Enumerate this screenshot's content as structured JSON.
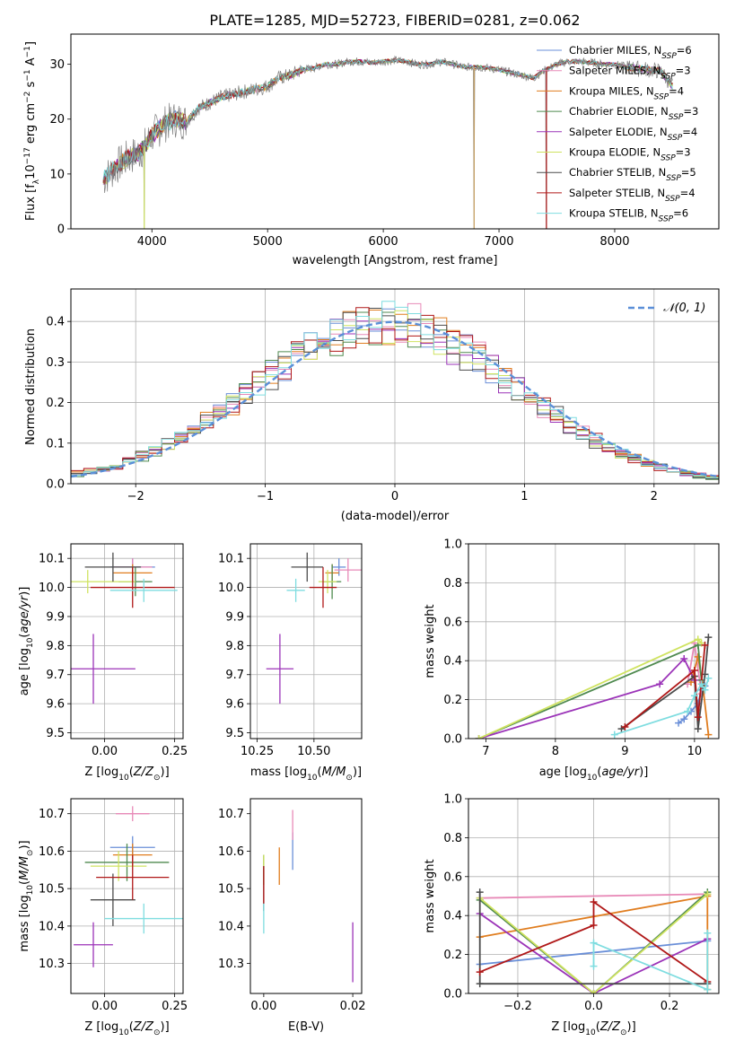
{
  "title": "PLATE=1285, MJD=52723, FIBERID=0281, z=0.062",
  "colors": {
    "Chabrier MILES": "#6a8fd8",
    "Salpeter MILES": "#e88ab8",
    "Kroupa MILES": "#e07d1f",
    "Chabrier ELODIE": "#4f8a4f",
    "Salpeter ELODIE": "#9b33b8",
    "Kroupa ELODIE": "#cfe360",
    "Chabrier STELIB": "#4b4b4b",
    "Salpeter STELIB": "#b01818",
    "Kroupa STELIB": "#7fdde0",
    "data": "#7f7f7f",
    "normal": "#5b8fd8"
  },
  "legend_spectrum": [
    {
      "name": "Chabrier MILES",
      "label": "Chabrier MILES, N",
      "sub": "SSP",
      "n": "=6"
    },
    {
      "name": "Salpeter MILES",
      "label": "Salpeter MILES, N",
      "sub": "SSP",
      "n": "=3"
    },
    {
      "name": "Kroupa MILES",
      "label": "Kroupa MILES, N",
      "sub": "SSP",
      "n": "=4"
    },
    {
      "name": "Chabrier ELODIE",
      "label": "Chabrier ELODIE, N",
      "sub": "SSP",
      "n": "=3"
    },
    {
      "name": "Salpeter ELODIE",
      "label": "Salpeter ELODIE, N",
      "sub": "SSP",
      "n": "=4"
    },
    {
      "name": "Kroupa ELODIE",
      "label": "Kroupa ELODIE, N",
      "sub": "SSP",
      "n": "=3"
    },
    {
      "name": "Chabrier STELIB",
      "label": "Chabrier STELIB, N",
      "sub": "SSP",
      "n": "=5"
    },
    {
      "name": "Salpeter STELIB",
      "label": "Salpeter STELIB, N",
      "sub": "SSP",
      "n": "=4"
    },
    {
      "name": "Kroupa STELIB",
      "label": "Kroupa STELIB, N",
      "sub": "SSP",
      "n": "=6"
    }
  ],
  "legend_residual": "𝒩(0, 1)",
  "chart_data": [
    {
      "id": "spectrum",
      "type": "line",
      "xlabel": "wavelength [Angstrom, rest frame]",
      "ylabel": "Flux [f_λ10^-17 erg cm^-2 s^-1 A^-1]",
      "xlim": [
        3300,
        8900
      ],
      "ylim": [
        0,
        35.5
      ],
      "xticks": [
        4000,
        5000,
        6000,
        7000,
        8000
      ],
      "yticks": [
        0,
        10,
        20,
        30
      ],
      "grid": false,
      "legend": "top-right",
      "continuum": [
        [
          3580,
          9
        ],
        [
          3700,
          11.5
        ],
        [
          3800,
          13
        ],
        [
          3900,
          14
        ],
        [
          4000,
          17
        ],
        [
          4100,
          19
        ],
        [
          4200,
          20
        ],
        [
          4300,
          19.5
        ],
        [
          4400,
          22
        ],
        [
          4500,
          23
        ],
        [
          4600,
          24
        ],
        [
          4700,
          24.5
        ],
        [
          4800,
          25
        ],
        [
          4900,
          25.5
        ],
        [
          5000,
          26
        ],
        [
          5100,
          27.5
        ],
        [
          5200,
          28
        ],
        [
          5300,
          29
        ],
        [
          5400,
          29.3
        ],
        [
          5500,
          30
        ],
        [
          5600,
          30
        ],
        [
          5700,
          30.5
        ],
        [
          5800,
          30.5
        ],
        [
          5900,
          30.3
        ],
        [
          6000,
          30.5
        ],
        [
          6100,
          30.7
        ],
        [
          6200,
          30.5
        ],
        [
          6300,
          30
        ],
        [
          6400,
          30
        ],
        [
          6500,
          30.5
        ],
        [
          6600,
          30
        ],
        [
          6700,
          29.5
        ],
        [
          6800,
          29.5
        ],
        [
          6900,
          29.3
        ],
        [
          7000,
          29
        ],
        [
          7100,
          28.5
        ],
        [
          7200,
          28
        ],
        [
          7300,
          27.5
        ],
        [
          7400,
          29
        ],
        [
          7500,
          30
        ],
        [
          7600,
          30.5
        ],
        [
          7700,
          30.5
        ],
        [
          7800,
          30.3
        ],
        [
          7900,
          30
        ],
        [
          8000,
          30
        ],
        [
          8100,
          29.5
        ],
        [
          8200,
          29.2
        ],
        [
          8300,
          29
        ],
        [
          8400,
          28.7
        ],
        [
          8500,
          26
        ]
      ],
      "data_dips": [
        [
          3934,
          0
        ],
        [
          6785,
          0
        ],
        [
          7410,
          0
        ]
      ]
    },
    {
      "id": "residuals",
      "type": "histogram",
      "xlabel": "(data-model)/error",
      "ylabel": "Normed distribution",
      "xlim": [
        -2.5,
        2.5
      ],
      "ylim": [
        0,
        0.48
      ],
      "xticks": [
        -2,
        -1,
        0,
        1,
        2
      ],
      "yticks": [
        0.0,
        0.1,
        0.2,
        0.3,
        0.4
      ],
      "grid": true,
      "legend": "top-right",
      "bin_width": 0.1,
      "gaussian": {
        "mean": 0,
        "sigma": 1
      }
    },
    {
      "id": "age-vs-Z",
      "type": "errorbar",
      "xlabel": "Z [log10(Z/Z⊙)]",
      "ylabel": "age [log10(age/yr)]",
      "xlim": [
        -0.12,
        0.28
      ],
      "ylim": [
        9.48,
        10.15
      ],
      "xticks": [
        0.0,
        0.25
      ],
      "yticks": [
        9.5,
        9.6,
        9.7,
        9.8,
        9.9,
        10.0,
        10.1
      ],
      "grid": true,
      "points": [
        {
          "series": "Chabrier MILES",
          "x": 0.1,
          "xerr": 0.08,
          "y": 10.07,
          "yerr": 0.03
        },
        {
          "series": "Salpeter MILES",
          "x": 0.1,
          "xerr": 0.07,
          "y": 10.07,
          "yerr": 0.03
        },
        {
          "series": "Kroupa MILES",
          "x": 0.1,
          "xerr": 0.07,
          "y": 10.05,
          "yerr": 0.03
        },
        {
          "series": "Chabrier ELODIE",
          "x": 0.11,
          "xerr": 0.06,
          "y": 10.02,
          "yerr": 0.05
        },
        {
          "series": "Salpeter ELODIE",
          "x": -0.04,
          "xerr": 0.15,
          "y": 9.72,
          "yerr": 0.12
        },
        {
          "series": "Kroupa ELODIE",
          "x": -0.06,
          "xerr": 0.17,
          "y": 10.02,
          "yerr": 0.04
        },
        {
          "series": "Chabrier STELIB",
          "x": 0.03,
          "xerr": 0.1,
          "y": 10.07,
          "yerr": 0.05
        },
        {
          "series": "Salpeter STELIB",
          "x": 0.1,
          "xerr": 0.15,
          "y": 10.0,
          "yerr": 0.07
        },
        {
          "series": "Kroupa STELIB",
          "x": 0.14,
          "xerr": 0.12,
          "y": 9.99,
          "yerr": 0.04
        }
      ]
    },
    {
      "id": "age-vs-mass",
      "type": "errorbar",
      "xlabel": "mass [log10(M/M⊙)]",
      "xlim": [
        10.22,
        10.71
      ],
      "ylim": [
        9.48,
        10.15
      ],
      "xticks": [
        10.25,
        10.5
      ],
      "yticks": [
        9.5,
        9.6,
        9.7,
        9.8,
        9.9,
        10.0,
        10.1
      ],
      "grid": true,
      "points": [
        {
          "series": "Chabrier MILES",
          "x": 10.61,
          "xerr": 0.03,
          "y": 10.07,
          "yerr": 0.03
        },
        {
          "series": "Salpeter MILES",
          "x": 10.65,
          "xerr": 0.06,
          "y": 10.06,
          "yerr": 0.04
        },
        {
          "series": "Kroupa MILES",
          "x": 10.58,
          "xerr": 0.03,
          "y": 10.05,
          "yerr": 0.03
        },
        {
          "series": "Chabrier ELODIE",
          "x": 10.58,
          "xerr": 0.04,
          "y": 10.02,
          "yerr": 0.06
        },
        {
          "series": "Salpeter ELODIE",
          "x": 10.35,
          "xerr": 0.06,
          "y": 9.72,
          "yerr": 0.12
        },
        {
          "series": "Kroupa ELODIE",
          "x": 10.56,
          "xerr": 0.04,
          "y": 10.02,
          "yerr": 0.04
        },
        {
          "series": "Chabrier STELIB",
          "x": 10.47,
          "xerr": 0.07,
          "y": 10.07,
          "yerr": 0.05
        },
        {
          "series": "Salpeter STELIB",
          "x": 10.54,
          "xerr": 0.06,
          "y": 10.0,
          "yerr": 0.07
        },
        {
          "series": "Kroupa STELIB",
          "x": 10.42,
          "xerr": 0.04,
          "y": 9.99,
          "yerr": 0.04
        }
      ]
    },
    {
      "id": "weight-vs-age",
      "type": "line",
      "xlabel": "age [log10(age/yr)]",
      "ylabel": "mass weight",
      "xlim": [
        6.75,
        10.35
      ],
      "ylim": [
        0,
        1
      ],
      "xticks": [
        7,
        8,
        9,
        10
      ],
      "yticks": [
        0.0,
        0.2,
        0.4,
        0.6,
        0.8,
        1.0
      ],
      "grid": true,
      "series": [
        {
          "name": "Chabrier MILES",
          "x": [
            9.77,
            9.85,
            9.95,
            10.05,
            10.1,
            10.15
          ],
          "y": [
            0.08,
            0.1,
            0.14,
            0.18,
            0.25,
            0.27
          ]
        },
        {
          "name": "Salpeter MILES",
          "x": [
            9.9,
            10.0,
            10.1
          ],
          "y": [
            0.28,
            0.49,
            0.23
          ]
        },
        {
          "name": "Kroupa MILES",
          "x": [
            9.95,
            10.05,
            10.12,
            10.2
          ],
          "y": [
            0.29,
            0.42,
            0.27,
            0.02
          ]
        },
        {
          "name": "Chabrier ELODIE",
          "x": [
            6.9,
            10.05,
            10.1
          ],
          "y": [
            0.0,
            0.48,
            0.3
          ]
        },
        {
          "name": "Salpeter ELODIE",
          "x": [
            6.9,
            9.5,
            9.85,
            10.0
          ],
          "y": [
            0.0,
            0.28,
            0.41,
            0.3
          ]
        },
        {
          "name": "Kroupa ELODIE",
          "x": [
            6.9,
            10.05,
            10.1
          ],
          "y": [
            0.0,
            0.51,
            0.49
          ]
        },
        {
          "name": "Chabrier STELIB",
          "x": [
            8.95,
            10.0,
            10.05,
            10.15,
            10.2
          ],
          "y": [
            0.05,
            0.32,
            0.05,
            0.33,
            0.52
          ]
        },
        {
          "name": "Salpeter STELIB",
          "x": [
            9.0,
            10.0,
            10.05,
            10.15
          ],
          "y": [
            0.06,
            0.35,
            0.11,
            0.48
          ]
        },
        {
          "name": "Kroupa STELIB",
          "x": [
            8.85,
            9.9,
            10.0,
            10.1,
            10.15,
            10.2
          ],
          "y": [
            0.02,
            0.14,
            0.22,
            0.28,
            0.25,
            0.31
          ]
        }
      ]
    },
    {
      "id": "mass-vs-Z",
      "type": "errorbar",
      "xlabel": "Z [log10(Z/Z⊙)]",
      "ylabel": "mass [log10(M/M⊙)]",
      "xlim": [
        -0.12,
        0.28
      ],
      "ylim": [
        10.22,
        10.74
      ],
      "xticks": [
        0.0,
        0.25
      ],
      "yticks": [
        10.3,
        10.4,
        10.5,
        10.6,
        10.7
      ],
      "grid": true,
      "points": [
        {
          "series": "Chabrier MILES",
          "x": 0.1,
          "xerr": 0.08,
          "y": 10.61,
          "yerr": 0.03
        },
        {
          "series": "Salpeter MILES",
          "x": 0.1,
          "xerr": 0.06,
          "y": 10.7,
          "yerr": 0.02
        },
        {
          "series": "Kroupa MILES",
          "x": 0.1,
          "xerr": 0.07,
          "y": 10.59,
          "yerr": 0.03
        },
        {
          "series": "Chabrier ELODIE",
          "x": 0.08,
          "xerr": 0.15,
          "y": 10.57,
          "yerr": 0.05
        },
        {
          "series": "Salpeter ELODIE",
          "x": -0.04,
          "xerr": 0.07,
          "y": 10.35,
          "yerr": 0.06
        },
        {
          "series": "Kroupa ELODIE",
          "x": 0.05,
          "xerr": 0.1,
          "y": 10.56,
          "yerr": 0.04
        },
        {
          "series": "Chabrier STELIB",
          "x": 0.03,
          "xerr": 0.08,
          "y": 10.47,
          "yerr": 0.07
        },
        {
          "series": "Salpeter STELIB",
          "x": 0.1,
          "xerr": 0.13,
          "y": 10.53,
          "yerr": 0.06
        },
        {
          "series": "Kroupa STELIB",
          "x": 0.14,
          "xerr": 0.14,
          "y": 10.42,
          "yerr": 0.04
        }
      ]
    },
    {
      "id": "mass-vs-EBV",
      "type": "errorbar",
      "xlabel": "E(B-V)",
      "xlim": [
        -0.003,
        0.022
      ],
      "ylim": [
        10.22,
        10.74
      ],
      "xticks": [
        0.0,
        0.02
      ],
      "yticks": [
        10.3,
        10.4,
        10.5,
        10.6,
        10.7
      ],
      "grid": false,
      "points": [
        {
          "series": "Chabrier MILES",
          "x": 0.0065,
          "y": 10.6,
          "yerr": 0.05
        },
        {
          "series": "Salpeter MILES",
          "x": 0.0065,
          "y": 10.67,
          "yerr": 0.04
        },
        {
          "series": "Kroupa MILES",
          "x": 0.0035,
          "y": 10.56,
          "yerr": 0.05
        },
        {
          "series": "Chabrier ELODIE",
          "x": 0.0,
          "y": 10.55,
          "yerr": 0.04
        },
        {
          "series": "Salpeter ELODIE",
          "x": 0.02,
          "y": 10.33,
          "yerr": 0.08
        },
        {
          "series": "Kroupa ELODIE",
          "x": 0.0,
          "y": 10.55,
          "yerr": 0.04
        },
        {
          "series": "Chabrier STELIB",
          "x": 0.0,
          "y": 10.5,
          "yerr": 0.06
        },
        {
          "series": "Salpeter STELIB",
          "x": 0.0,
          "y": 10.51,
          "yerr": 0.05
        },
        {
          "series": "Kroupa STELIB",
          "x": 0.0,
          "y": 10.42,
          "yerr": 0.04
        }
      ]
    },
    {
      "id": "weight-vs-Z",
      "type": "line",
      "xlabel": "Z [log10(Z/Z⊙)]",
      "ylabel": "mass weight",
      "xlim": [
        -0.33,
        0.33
      ],
      "ylim": [
        0,
        1
      ],
      "xticks": [
        -0.2,
        0.0,
        0.2
      ],
      "yticks": [
        0.0,
        0.2,
        0.4,
        0.6,
        0.8,
        1.0
      ],
      "grid": true,
      "series": [
        {
          "name": "Chabrier MILES",
          "x": [
            -0.3,
            0.3
          ],
          "y": [
            0.15,
            0.27
          ]
        },
        {
          "name": "Salpeter MILES",
          "x": [
            -0.3,
            0.3
          ],
          "y": [
            0.49,
            0.51
          ]
        },
        {
          "name": "Kroupa MILES",
          "x": [
            -0.3,
            0.3,
            0.3
          ],
          "y": [
            0.29,
            0.5,
            0.02
          ]
        },
        {
          "name": "Chabrier ELODIE",
          "x": [
            -0.3,
            0.0,
            0.3
          ],
          "y": [
            0.48,
            0.0,
            0.52
          ]
        },
        {
          "name": "Salpeter ELODIE",
          "x": [
            -0.3,
            0.0,
            0.3
          ],
          "y": [
            0.41,
            0.0,
            0.28
          ]
        },
        {
          "name": "Kroupa ELODIE",
          "x": [
            -0.3,
            0.0,
            0.3
          ],
          "y": [
            0.49,
            0.0,
            0.51
          ]
        },
        {
          "name": "Chabrier STELIB",
          "x": [
            -0.3,
            -0.3,
            0.3
          ],
          "y": [
            0.52,
            0.05,
            0.05
          ]
        },
        {
          "name": "Salpeter STELIB",
          "x": [
            -0.3,
            0.0,
            0.0,
            0.3
          ],
          "y": [
            0.11,
            0.35,
            0.47,
            0.06
          ]
        },
        {
          "name": "Kroupa STELIB",
          "x": [
            0.0,
            0.0,
            0.3,
            0.3
          ],
          "y": [
            0.14,
            0.26,
            0.02,
            0.31
          ]
        }
      ]
    }
  ]
}
